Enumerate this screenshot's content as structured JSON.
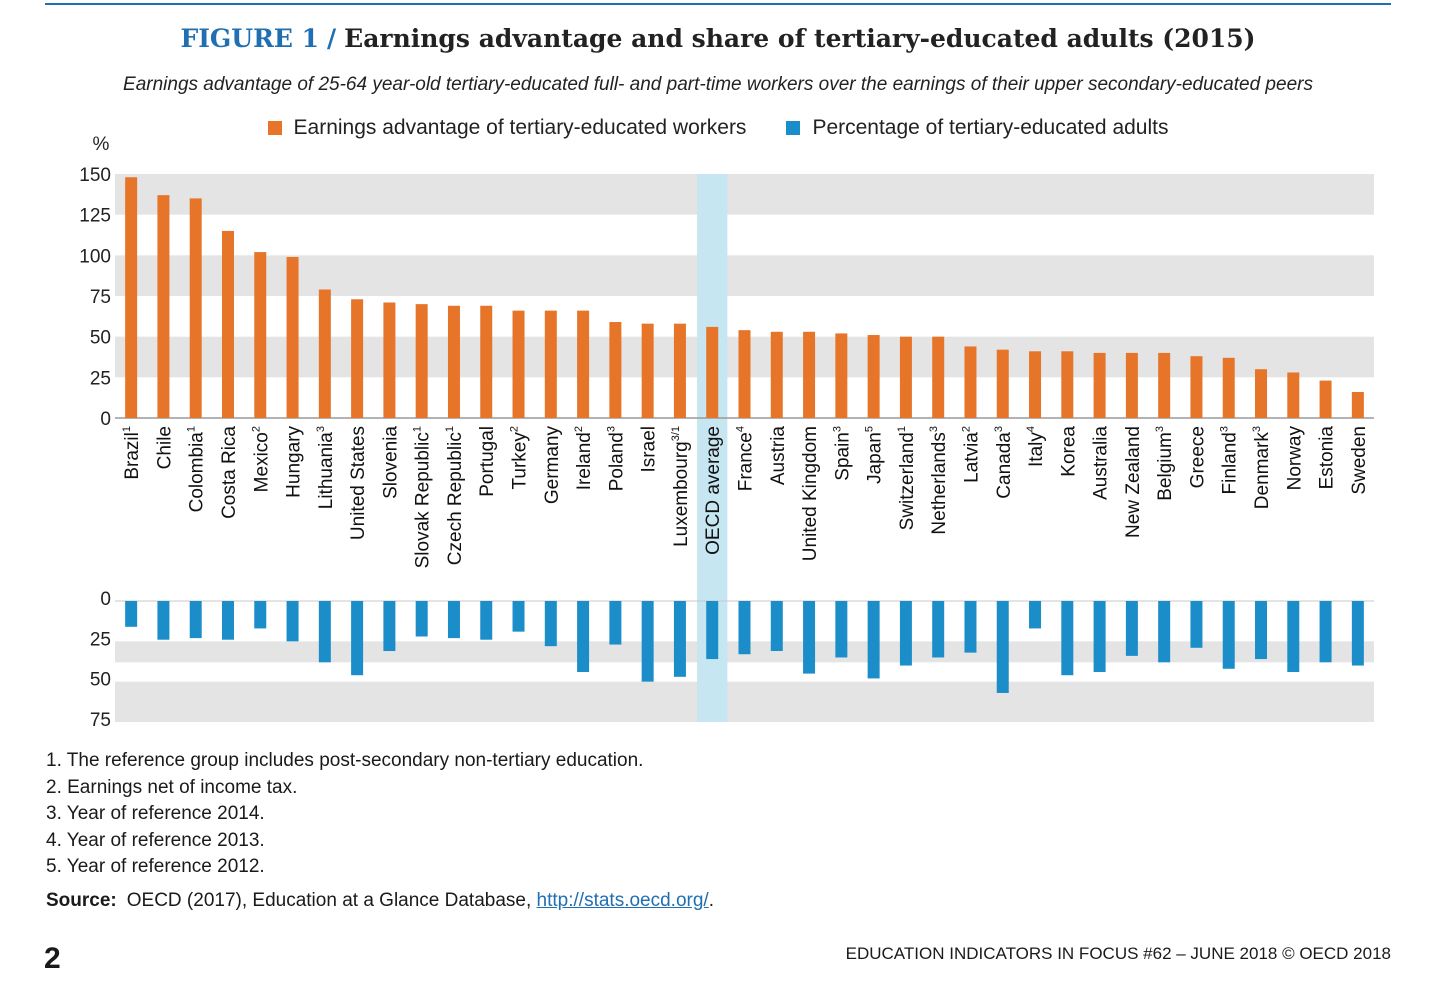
{
  "figure": {
    "number": "FIGURE 1",
    "separator": "/",
    "title": "Earnings advantage and share of tertiary-educated adults (2015)",
    "subtitle": "Earnings advantage of 25-64 year-old tertiary-educated full- and part-time workers over the earnings of their upper secondary-educated peers"
  },
  "colors": {
    "orange": "#e6752a",
    "blue": "#1b8ec9",
    "band": "#e4e4e4",
    "highlight": "#c6e6f2",
    "accent": "#1f6fb2"
  },
  "chart_data": {
    "type": "bar",
    "ylabel": "%",
    "upper_ylim": [
      0,
      150
    ],
    "upper_ticks": [
      "150",
      "125",
      "100",
      "75",
      "50",
      "25",
      "0"
    ],
    "lower_ylim": [
      0,
      75
    ],
    "lower_ticks": [
      "0",
      "25",
      "50",
      "75"
    ],
    "grid_bands": true,
    "legend_position": "top",
    "categories": [
      "Brazil",
      "Chile",
      "Colombia",
      "Costa Rica",
      "Mexico",
      "Hungary",
      "Lithuania",
      "United States",
      "Slovenia",
      "Slovak Republic",
      "Czech Republic",
      "Portugal",
      "Turkey",
      "Germany",
      "Ireland",
      "Poland",
      "Israel",
      "Luxembourg",
      "OECD average",
      "France",
      "Austria",
      "United Kingdom",
      "Spain",
      "Japan",
      "Switzerland",
      "Netherlands",
      "Latvia",
      "Canada",
      "Italy",
      "Korea",
      "Australia",
      "New Zealand",
      "Belgium",
      "Greece",
      "Finland",
      "Denmark",
      "Norway",
      "Estonia",
      "Sweden"
    ],
    "footnote_marks": [
      "1",
      "",
      "1",
      "",
      "2",
      "",
      "3",
      "",
      "",
      "1",
      "1",
      "",
      "2",
      "",
      "2",
      "3",
      "",
      "3/1",
      "",
      "4",
      "",
      "",
      "3",
      "5",
      "1",
      "3",
      "2",
      "3",
      "4",
      "",
      "",
      "",
      "3",
      "",
      "3",
      "3",
      "",
      "",
      ""
    ],
    "highlight_category": "OECD average",
    "series": [
      {
        "name": "Earnings advantage of tertiary-educated workers",
        "values": [
          148,
          137,
          135,
          115,
          102,
          99,
          79,
          73,
          71,
          70,
          69,
          69,
          66,
          66,
          66,
          59,
          58,
          58,
          56,
          54,
          53,
          53,
          52,
          51,
          50,
          50,
          44,
          42,
          41,
          41,
          40,
          40,
          40,
          38,
          37,
          30,
          28,
          23,
          16
        ]
      },
      {
        "name": "Percentage of tertiary-educated adults",
        "values": [
          16,
          24,
          23,
          24,
          17,
          25,
          38,
          46,
          31,
          22,
          23,
          24,
          19,
          28,
          44,
          27,
          50,
          47,
          36,
          33,
          31,
          45,
          35,
          48,
          40,
          35,
          32,
          57,
          17,
          46,
          44,
          34,
          38,
          29,
          42,
          36,
          44,
          38,
          40
        ]
      }
    ]
  },
  "notes": [
    "1. The reference group includes post-secondary non-tertiary education.",
    "2. Earnings net of income tax.",
    "3. Year of reference 2014.",
    "4. Year of reference 2013.",
    "5. Year of reference 2012."
  ],
  "source": {
    "label": "Source:",
    "text": "OECD (2017), Education at a Glance Database,",
    "link": "http://stats.oecd.org/",
    "end": "."
  },
  "page_number": "2",
  "footer": "EDUCATION INDICATORS IN FOCUS #62 – JUNE 2018 © OECD 2018"
}
